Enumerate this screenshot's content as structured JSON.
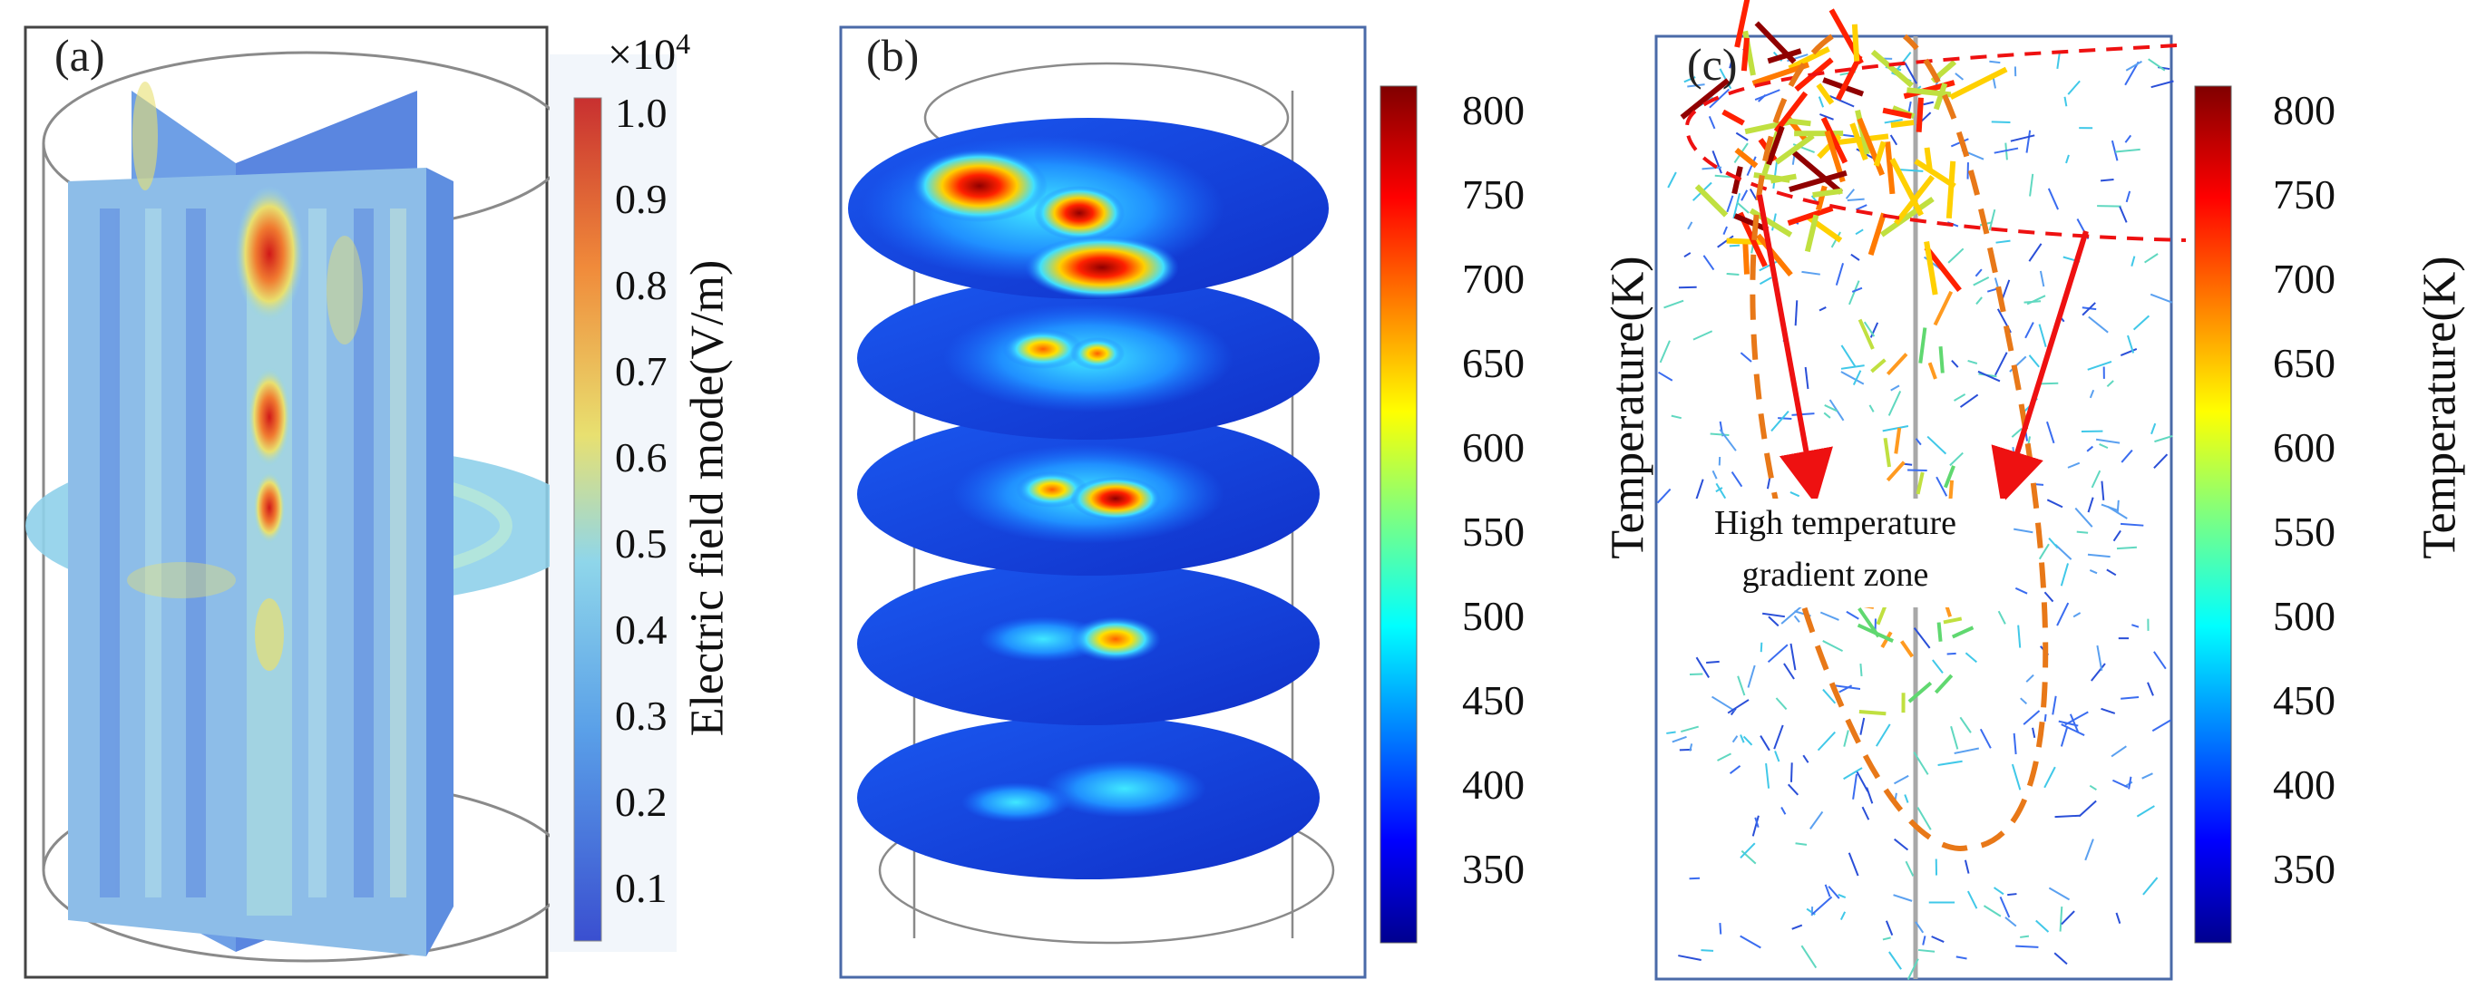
{
  "panels": {
    "a": {
      "label": "(a)"
    },
    "b": {
      "label": "(b)"
    },
    "c": {
      "label": "(c)"
    }
  },
  "colorbars": {
    "electric": {
      "title": "Electric field mode(V/m)",
      "multiplier": "×10",
      "multiplier_exp": "4",
      "ticks": [
        "1.0",
        "0.9",
        "0.8",
        "0.7",
        "0.6",
        "0.5",
        "0.4",
        "0.3",
        "0.2",
        "0.1"
      ]
    },
    "temp_b": {
      "title": "Temperature(K)",
      "ticks": [
        "800",
        "750",
        "700",
        "650",
        "600",
        "550",
        "500",
        "450",
        "400",
        "350"
      ]
    },
    "temp_c": {
      "title": "Temperature(K)",
      "ticks": [
        "800",
        "750",
        "700",
        "650",
        "600",
        "550",
        "500",
        "450",
        "400",
        "350"
      ]
    }
  },
  "annotation": {
    "line1": "High temperature",
    "line2": "gradient zone"
  },
  "colors": {
    "jet_dark_red": "#800000",
    "jet_red": "#ff2000",
    "jet_yellow": "#ffff00",
    "jet_cyan": "#00ffff",
    "jet_blue": "#0000ff",
    "jet_dark_blue": "#00008f",
    "frame_blue": "#4a6aa8",
    "dashed_red": "#ee1111",
    "dashed_orange": "#e87818",
    "arrow_red": "#ee1111"
  }
}
